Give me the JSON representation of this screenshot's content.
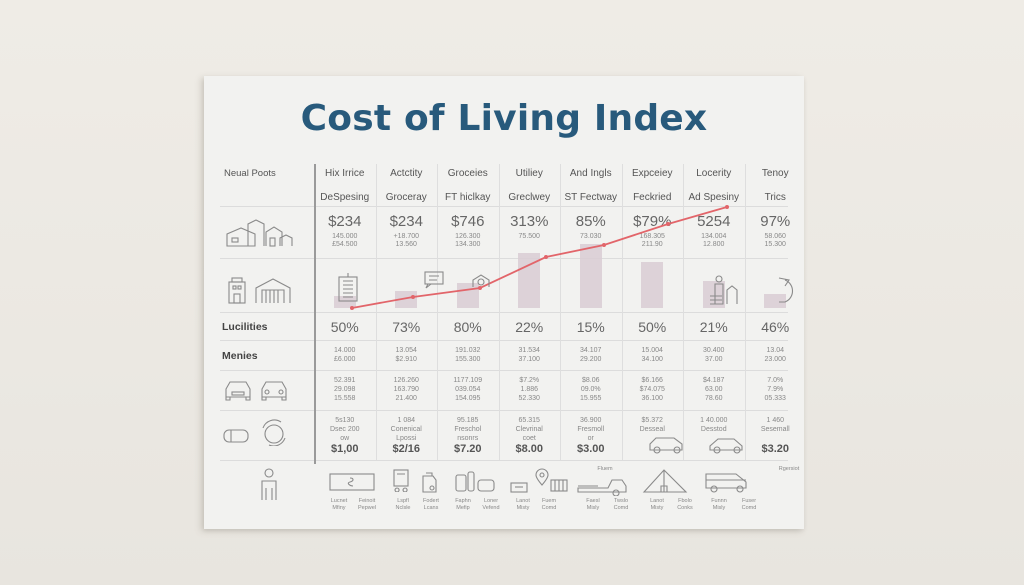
{
  "poster": {
    "title": "Cost of Living Index",
    "corner_header": "Neual Poots",
    "columns": [
      {
        "h1": "Hix Irrice",
        "h2": "DeSpesing",
        "big": "$234",
        "sub1": "145.000",
        "sub2": "£54.500",
        "pct": "50%",
        "m1": "14.000",
        "m2": "£6.000",
        "t1": "52.391",
        "t2": "29.098",
        "t3": "15.558",
        "q1": "5s130",
        "q2": "Dsec 200",
        "q3": "ow",
        "price": "$1,00"
      },
      {
        "h1": "Actctity",
        "h2": "Groceray",
        "big": "$234",
        "sub1": "+18.700",
        "sub2": "13.560",
        "pct": "73%",
        "m1": "13.054",
        "m2": "$2.910",
        "t1": "126.260",
        "t2": "163.790",
        "t3": "21.400",
        "q1": "1 084",
        "q2": "Conenical",
        "q3": "Lpossi",
        "price": "$2/16"
      },
      {
        "h1": "Groceies",
        "h2": "FT hiclkay",
        "big": "$746",
        "sub1": "126.300",
        "sub2": "134.300",
        "pct": "80%",
        "m1": "191.032",
        "m2": "155.300",
        "t1": "1177.109",
        "t2": "039.054",
        "t3": "154.095",
        "q1": "95.185",
        "q2": "Freschol",
        "q3": "nsonrs",
        "price": "$7.20"
      },
      {
        "h1": "Utiliey",
        "h2": "Greclwey",
        "big": "313%",
        "sub1": "75.500",
        "sub2": "",
        "pct": "22%",
        "m1": "31.534",
        "m2": "37.100",
        "t1": "$7.2%",
        "t2": "1.886",
        "t3": "52.330",
        "q1": "65.315",
        "q2": "Clevrinal",
        "q3": "coet",
        "price": "$8.00"
      },
      {
        "h1": "And Ingls",
        "h2": "ST Fectway",
        "big": "85%",
        "sub1": "73.030",
        "sub2": "",
        "pct": "15%",
        "m1": "34.107",
        "m2": "29.200",
        "t1": "$8.06",
        "t2": "09.0%",
        "t3": "15.955",
        "q1": "36.900",
        "q2": "Fresmoll",
        "q3": "or",
        "price": "$3.00"
      },
      {
        "h1": "Expceiey",
        "h2": "Feckried",
        "big": "$79%",
        "sub1": "168.305",
        "sub2": "211.90",
        "pct": "50%",
        "m1": "15.004",
        "m2": "34.100",
        "t1": "$6.166",
        "t2": "$74.075",
        "t3": "36.100",
        "q1": "$5.372",
        "q2": "Desseal",
        "q3": "",
        "price": ""
      },
      {
        "h1": "Locerity",
        "h2": "Ad Spesiny",
        "big": "5254",
        "sub1": "134.004",
        "sub2": "12.800",
        "pct": "21%",
        "m1": "30.400",
        "m2": "37.00",
        "t1": "$4.187",
        "t2": "63.00",
        "t3": "78.60",
        "q1": "1 40.000",
        "q2": "Desstod",
        "q3": "",
        "price": ""
      },
      {
        "h1": "Tenoy",
        "h2": "Trics",
        "big": "97%",
        "sub1": "58.060",
        "sub2": "15.300",
        "pct": "46%",
        "m1": "13.04",
        "m2": "23.000",
        "t1": "7.0%",
        "t2": "7.9%",
        "t3": "05.333",
        "q1": "1 460",
        "q2": "Sesemall",
        "q3": "",
        "price": "$3.20"
      }
    ],
    "row_labels": {
      "pct_row": "Lucilities",
      "money_row": "Menies"
    },
    "bottom_captions": [
      [
        "Lucnet",
        "Mfiny"
      ],
      [
        "Feinoit",
        "Pepwel"
      ],
      [
        "Lspfl",
        "Nclsle"
      ],
      [
        "Fodert",
        "Lcans"
      ],
      [
        "Faphn",
        "Mefip"
      ],
      [
        "Loner",
        "Vefend"
      ],
      [
        "Lanot",
        "Misty"
      ],
      [
        "Fuem",
        "Comd"
      ],
      [
        "Faesl",
        "Misly"
      ],
      [
        "Twslo",
        "Comd"
      ],
      [
        "Lanot",
        "Misty"
      ],
      [
        "Fbolo",
        "Conks"
      ],
      [
        "Funnn",
        "Misly"
      ],
      [
        "Fuser",
        "Comd"
      ]
    ],
    "bottom_small_labels": [
      "Fluem",
      "Rgersiot"
    ],
    "icons": [
      "houses-icon",
      "building-icon",
      "warehouse-icon",
      "car-front-icon",
      "car-front-icon",
      "pill-icon",
      "refresh-globe-icon",
      "person-icon",
      "tv-icon",
      "cart-icon",
      "fuel-can-icon",
      "bottles-icon",
      "basket-icon",
      "location-pin-icon",
      "market-stall-icon",
      "sports-car-icon",
      "tent-icon",
      "van-icon",
      "car-side-icon",
      "car-side-icon",
      "calendar-icon",
      "chat-icon",
      "house-gear-icon",
      "person-packages-icon",
      "arrow-curve-icon"
    ],
    "colors": {
      "title": "#285a7c",
      "line": "#e2656a",
      "bar": "#d9ccd4",
      "background": "#ece9e3",
      "paper": "#f2f2f0"
    }
  },
  "chart_data": {
    "type": "line",
    "title": "Cost of Living Index",
    "categories": [
      "DeSpesing",
      "Groceray",
      "FT hiclkay",
      "Greclwey",
      "ST Fectway",
      "Feckried",
      "Ad Spesiny",
      "Trics"
    ],
    "series": [
      {
        "name": "trend line",
        "type": "line",
        "values": [
          5,
          16,
          25,
          56,
          68,
          89,
          106,
          null
        ]
      },
      {
        "name": "bars",
        "type": "bar",
        "values": [
          12,
          15,
          28,
          60,
          68,
          46,
          20,
          20
        ]
      }
    ],
    "xlabel": "",
    "ylabel": "",
    "grid": true,
    "legend": "none",
    "table": {
      "headers_row1": [
        "Neual Poots",
        "Hix Irrice",
        "Actctity",
        "Groceies",
        "Utiliey",
        "And Ingls",
        "Expceiey",
        "Locerity",
        "Tenoy"
      ],
      "headers_row2": [
        "",
        "DeSpesing",
        "Groceray",
        "FT hiclkay",
        "Greclwey",
        "ST Fectway",
        "Feckried",
        "Ad Spesiny",
        "Trics"
      ],
      "main_values": [
        "$234",
        "$234",
        "$746",
        "313%",
        "85%",
        "$79%",
        "5254",
        "97%"
      ],
      "percent_row_label": "Lucilities",
      "percent_values": [
        "50%",
        "73%",
        "80%",
        "22%",
        "15%",
        "50%",
        "21%",
        "46%"
      ],
      "price_values": [
        "$1,00",
        "$2/16",
        "$7.20",
        "$8.00",
        "$3.00",
        "",
        "",
        "$3.20"
      ]
    }
  }
}
